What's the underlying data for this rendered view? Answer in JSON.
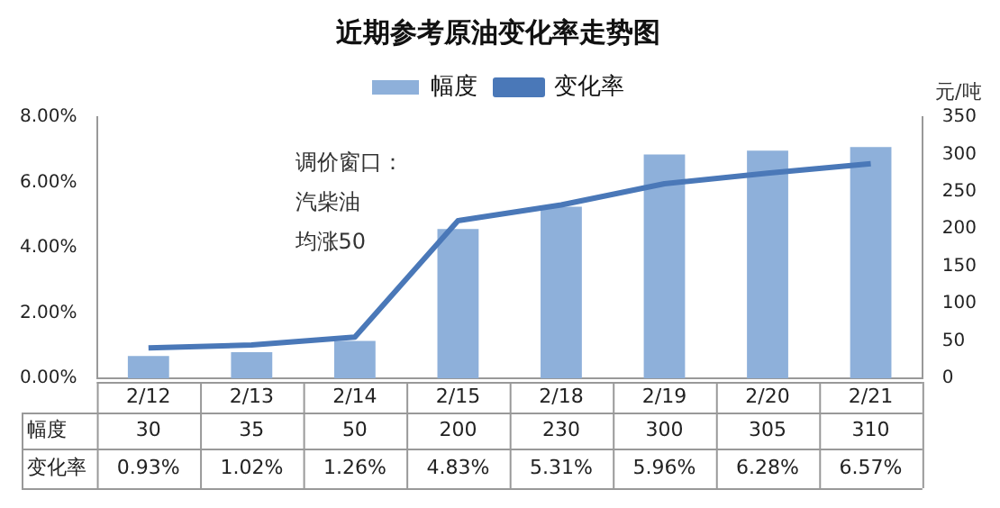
{
  "chart_data": {
    "type": "bar",
    "title": "近期参考原油变化率走势图",
    "y2label": "元/吨",
    "categories": [
      "2/12",
      "2/13",
      "2/14",
      "2/15",
      "2/18",
      "2/19",
      "2/20",
      "2/21"
    ],
    "series": [
      {
        "name": "幅度",
        "axis": "y2",
        "color": "#8eb0da",
        "values": [
          30,
          35,
          50,
          200,
          230,
          300,
          305,
          310
        ],
        "value_labels": [
          "30",
          "35",
          "50",
          "200",
          "230",
          "300",
          "305",
          "310"
        ]
      },
      {
        "name": "变化率",
        "type": "line",
        "axis": "y",
        "color": "#4a78b8",
        "values": [
          0.93,
          1.02,
          1.26,
          4.83,
          5.31,
          5.96,
          6.28,
          6.57
        ],
        "value_labels": [
          "0.93%",
          "1.02%",
          "1.26%",
          "4.83%",
          "5.31%",
          "5.96%",
          "6.28%",
          "6.57%"
        ]
      }
    ],
    "ylim": [
      0,
      8
    ],
    "yticks": [
      {
        "value": 0,
        "label": "0.00%"
      },
      {
        "value": 2,
        "label": "2.00%"
      },
      {
        "value": 4,
        "label": "4.00%"
      },
      {
        "value": 6,
        "label": "6.00%"
      },
      {
        "value": 8,
        "label": "8.00%"
      }
    ],
    "y2lim": [
      0,
      350
    ],
    "y2ticks": [
      0,
      50,
      100,
      150,
      200,
      250,
      300,
      350
    ],
    "legend": "top",
    "marker": "none",
    "grid": false,
    "annotations": [
      "调价窗口：",
      "汽柴油",
      "均涨50"
    ]
  }
}
